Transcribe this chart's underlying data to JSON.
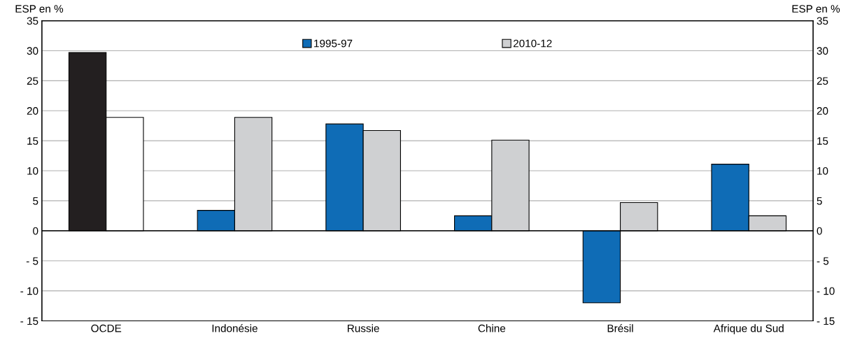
{
  "chart_data": {
    "type": "bar",
    "ylabel": "ESP en %",
    "y2label": "ESP en %",
    "categories": [
      "OCDE",
      "Indonésie",
      "Russie",
      "Chine",
      "Brésil",
      "Afrique du Sud"
    ],
    "series": [
      {
        "name": "1995-97",
        "color": "#0f6cb6",
        "colors": [
          "#231f20",
          "#0f6cb6",
          "#0f6cb6",
          "#0f6cb6",
          "#0f6cb6",
          "#0f6cb6"
        ],
        "values": [
          29.7,
          3.4,
          17.8,
          2.5,
          -12.0,
          11.1
        ]
      },
      {
        "name": "2010-12",
        "color": "#cfd0d2",
        "colors": [
          "#ffffff",
          "#cfd0d2",
          "#cfd0d2",
          "#cfd0d2",
          "#cfd0d2",
          "#cfd0d2"
        ],
        "values": [
          18.9,
          18.9,
          16.7,
          15.1,
          4.7,
          2.5
        ]
      }
    ],
    "ylim": [
      -15,
      35
    ],
    "yticks": [
      {
        "value": -15,
        "label": "- 15"
      },
      {
        "value": -10,
        "label": "- 10"
      },
      {
        "value": -5,
        "label": "- 5"
      },
      0,
      5,
      10,
      15,
      20,
      25,
      30,
      35
    ],
    "y2lim": [
      -15,
      35
    ],
    "y2ticks": [
      {
        "value": -15,
        "label": "- 15"
      },
      {
        "value": -10,
        "label": "- 10"
      },
      {
        "value": -5,
        "label": "- 5"
      },
      0,
      5,
      10,
      15,
      20,
      25,
      30,
      35
    ],
    "ref_lines": [
      {
        "axis": "y",
        "value": 0,
        "color": "#000000"
      }
    ],
    "grid": "y",
    "legend": "top"
  }
}
